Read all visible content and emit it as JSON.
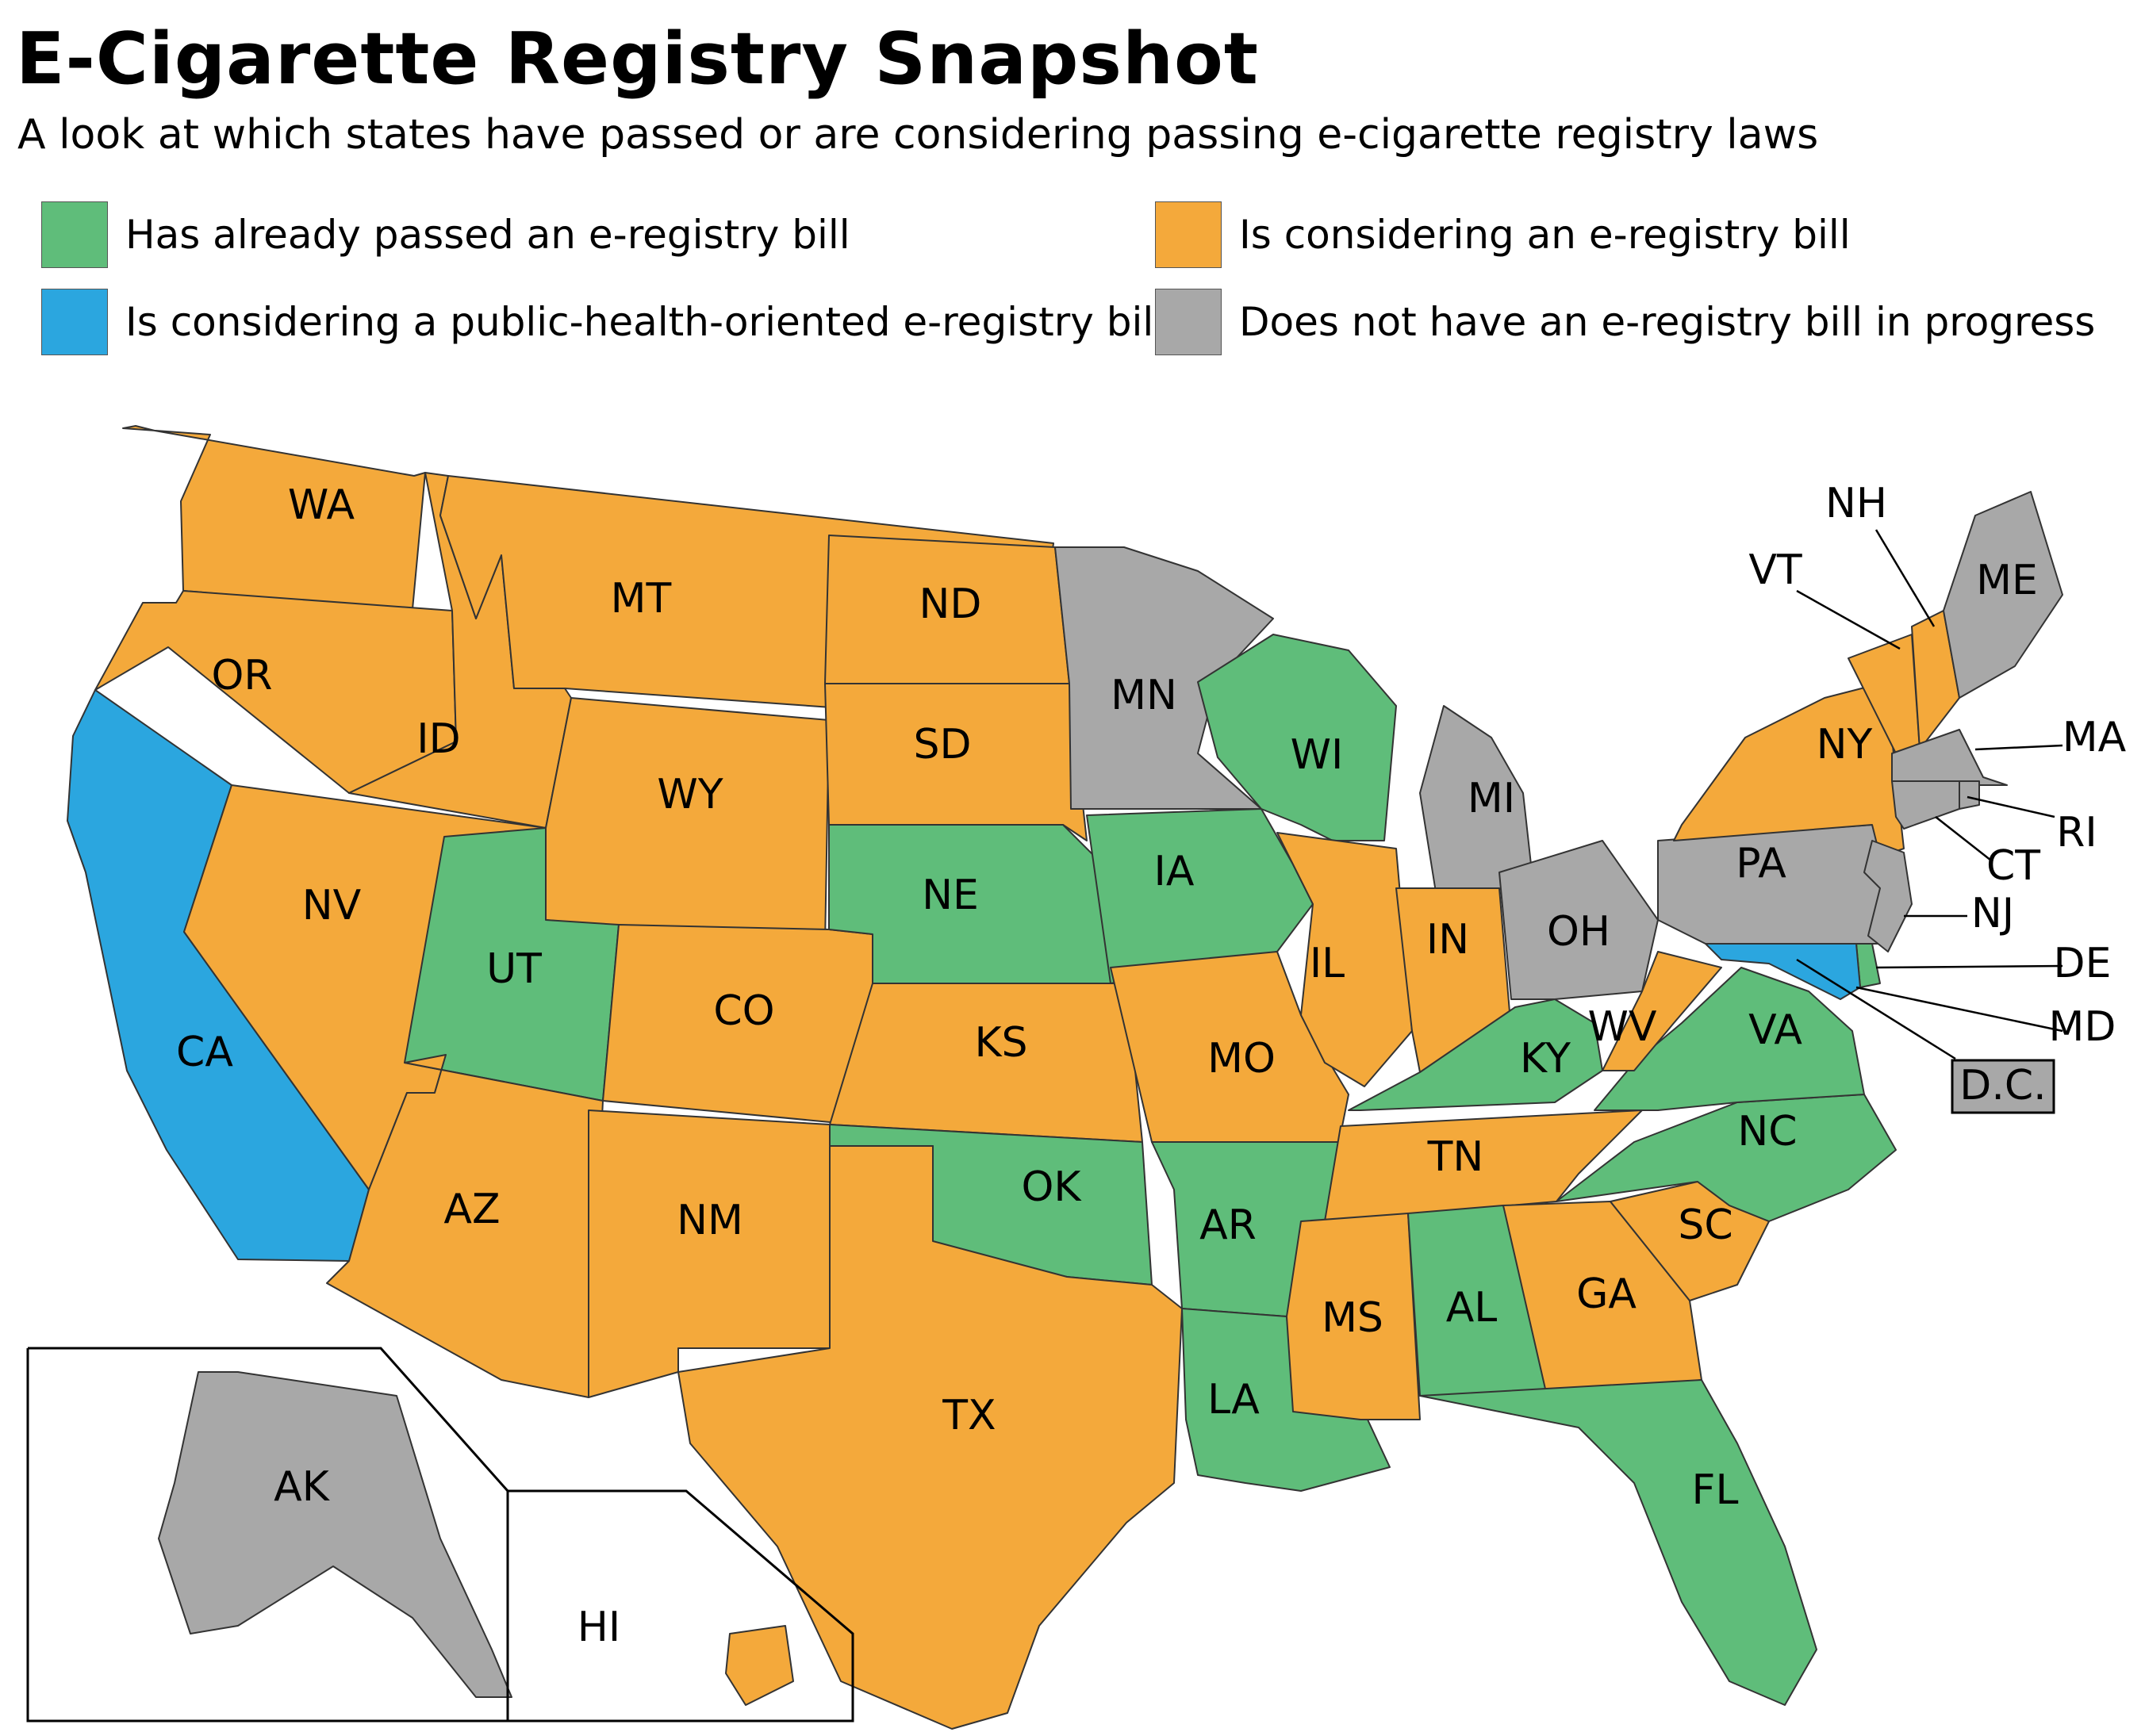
{
  "title": "E-Cigarette Registry Snapshot",
  "subtitle": "A look at which states have passed or are considering passing e-cigarette registry laws",
  "colors": {
    "passed": "#5fbd7a",
    "considering": "#f4a93b",
    "public_health": "#2ba6df",
    "none": "#a8a8a8"
  },
  "legend": [
    {
      "status": "passed",
      "label": "Has already passed an e-registry bill"
    },
    {
      "status": "considering",
      "label": "Is considering an e-registry bill"
    },
    {
      "status": "public_health",
      "label": "Is considering a public-health-oriented e-registry bill"
    },
    {
      "status": "none",
      "label": "Does not have an e-registry bill in progress"
    }
  ],
  "states": [
    {
      "abbr": "WA",
      "status": "considering"
    },
    {
      "abbr": "OR",
      "status": "considering"
    },
    {
      "abbr": "CA",
      "status": "public_health"
    },
    {
      "abbr": "ID",
      "status": "considering"
    },
    {
      "abbr": "NV",
      "status": "considering"
    },
    {
      "abbr": "MT",
      "status": "considering"
    },
    {
      "abbr": "WY",
      "status": "considering"
    },
    {
      "abbr": "UT",
      "status": "passed"
    },
    {
      "abbr": "AZ",
      "status": "considering"
    },
    {
      "abbr": "CO",
      "status": "considering"
    },
    {
      "abbr": "NM",
      "status": "considering"
    },
    {
      "abbr": "ND",
      "status": "considering"
    },
    {
      "abbr": "SD",
      "status": "considering"
    },
    {
      "abbr": "NE",
      "status": "passed"
    },
    {
      "abbr": "KS",
      "status": "considering"
    },
    {
      "abbr": "OK",
      "status": "passed"
    },
    {
      "abbr": "TX",
      "status": "considering"
    },
    {
      "abbr": "MN",
      "status": "none"
    },
    {
      "abbr": "IA",
      "status": "passed"
    },
    {
      "abbr": "MO",
      "status": "considering"
    },
    {
      "abbr": "AR",
      "status": "passed"
    },
    {
      "abbr": "LA",
      "status": "passed"
    },
    {
      "abbr": "WI",
      "status": "passed"
    },
    {
      "abbr": "IL",
      "status": "considering"
    },
    {
      "abbr": "MI",
      "status": "none"
    },
    {
      "abbr": "IN",
      "status": "considering"
    },
    {
      "abbr": "OH",
      "status": "none"
    },
    {
      "abbr": "KY",
      "status": "passed"
    },
    {
      "abbr": "TN",
      "status": "considering"
    },
    {
      "abbr": "MS",
      "status": "considering"
    },
    {
      "abbr": "AL",
      "status": "passed"
    },
    {
      "abbr": "GA",
      "status": "considering"
    },
    {
      "abbr": "FL",
      "status": "passed"
    },
    {
      "abbr": "SC",
      "status": "considering"
    },
    {
      "abbr": "NC",
      "status": "passed"
    },
    {
      "abbr": "VA",
      "status": "passed"
    },
    {
      "abbr": "WV",
      "status": "considering"
    },
    {
      "abbr": "PA",
      "status": "none"
    },
    {
      "abbr": "NY",
      "status": "considering"
    },
    {
      "abbr": "VT",
      "status": "considering"
    },
    {
      "abbr": "NH",
      "status": "considering"
    },
    {
      "abbr": "ME",
      "status": "none"
    },
    {
      "abbr": "MA",
      "status": "none"
    },
    {
      "abbr": "RI",
      "status": "none"
    },
    {
      "abbr": "CT",
      "status": "none"
    },
    {
      "abbr": "NJ",
      "status": "none"
    },
    {
      "abbr": "DE",
      "status": "passed"
    },
    {
      "abbr": "MD",
      "status": "public_health"
    },
    {
      "abbr": "D.C.",
      "status": "none"
    },
    {
      "abbr": "AK",
      "status": "none"
    },
    {
      "abbr": "HI",
      "status": "considering"
    }
  ]
}
